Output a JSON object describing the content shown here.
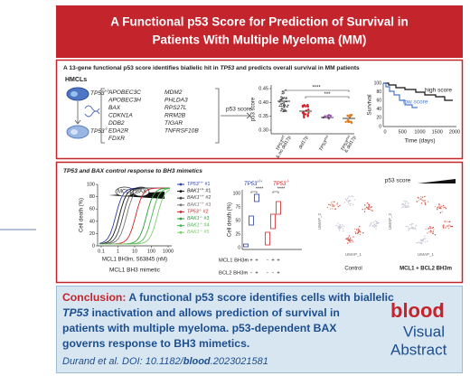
{
  "title": {
    "lines": [
      "A Functional p53 Score for Prediction of Survival in",
      "Patients With Multiple Myeloma (MM)"
    ]
  },
  "panel1": {
    "heading": [
      "A 13-gene functional p53 score identifies biallelic hit in ",
      "TP53",
      " and predicts overall survival in MM patients"
    ],
    "cells": {
      "label": "HMCLs",
      "gene": "TP53",
      "wt": "+/+",
      "ko": "-/-"
    },
    "genes_left": [
      "APOBEC3C",
      "APOBEC3H",
      "BAX",
      "CDKN1A",
      "DDB2",
      "EDA2R",
      "FDXR"
    ],
    "genes_right": [
      "MDM2",
      "PHLDA3",
      "RPS27L",
      "RRM2B",
      "TIGAR",
      "TNFRSF10B"
    ],
    "arrow_label": "p53 score",
    "score_chart": {
      "ylabel": "p53 score",
      "yticks": [
        "0.45",
        "0.40",
        "0.35",
        "0.30"
      ],
      "groups": [
        [
          "TP53",
          "WT",
          ""
        ],
        [
          "del17p",
          "",
          ""
        ],
        [
          "TP53",
          "mut",
          ""
        ],
        [
          "TP53",
          "mut",
          ""
        ]
      ],
      "group_notes": [
        "& no del17p",
        "& del17p"
      ],
      "stars": [
        "****",
        "***"
      ]
    },
    "survival_chart": {
      "ylabel": "Survival",
      "yticks": [
        "100",
        "80",
        "60",
        "40",
        "20",
        "0"
      ],
      "xticks": [
        "0",
        "500",
        "1000",
        "1500",
        "2000"
      ],
      "xlabel": "Time (days)",
      "legend": [
        "high score",
        "low score"
      ]
    }
  },
  "panel2": {
    "heading": [
      "TP53",
      " and ",
      "BAX",
      " control response to BH3 mimetics"
    ],
    "dose_chart": {
      "ylabel": "Cell death (%)",
      "yticks": [
        "100",
        "80",
        "60",
        "40",
        "20",
        "0"
      ],
      "xticks": [
        "0.1",
        "1",
        "10",
        "100",
        "1000"
      ],
      "xlabel": "MCL1 BH3m, S63845 (nM)",
      "caption": "MCL1 BH3 mimetic",
      "proteins": [
        "MCL1",
        "BAX"
      ],
      "legend": [
        {
          "gene": "TP53",
          "sup": "+/+",
          "num": " #1",
          "color": "#2b3fa8"
        },
        {
          "gene": "BAK1",
          "sup": "+/+",
          "num": " #1",
          "color": "#111111"
        },
        {
          "gene": "BAK1",
          "sup": "+/+",
          "num": " #2",
          "color": "#444444"
        },
        {
          "gene": "BAK1",
          "sup": "+/+",
          "num": " #3",
          "color": "#777777"
        },
        {
          "gene": "TP53",
          "sup": "-/-",
          "num": " #2",
          "color": "#d0262a"
        },
        {
          "gene": "BAK1",
          "sup": "-/-",
          "num": " #3",
          "color": "#2e9a3a"
        },
        {
          "gene": "BAK1",
          "sup": "-/-",
          "num": " #4",
          "color": "#4cb84f"
        },
        {
          "gene": "BAK1",
          "sup": "-/-",
          "num": " #5",
          "color": "#7dce6f"
        }
      ]
    },
    "box_chart": {
      "ylabel": "Cell death (%)",
      "yticks": [
        "100",
        "75",
        "50",
        "25",
        "0"
      ],
      "legend": [
        {
          "gene": "TP53",
          "sup": "+/+"
        },
        {
          "gene": "TP53",
          "sup": "-/-"
        }
      ],
      "stars": [
        "****",
        "****"
      ],
      "rows": [
        {
          "label": "MCL1 BH3m",
          "signs": [
            "-",
            "+",
            "+",
            "-",
            "+",
            "+"
          ]
        },
        {
          "label": "BCL2 BH3m",
          "signs": [
            "-",
            "-",
            "+",
            "-",
            "-",
            "+"
          ]
        }
      ]
    },
    "umap": {
      "score_label": "p53 score",
      "x_label": "UMAP_1",
      "y_label": "UMAP_2",
      "captions": [
        "Control",
        "MCL1 + BCL2 BH3m"
      ]
    }
  },
  "conclusion": {
    "label": "Conclusion:",
    "lines": [
      [
        " A functional p53 score identifies cells with biallelic"
      ],
      [
        "TP53",
        " inactivation and allows prediction of survival in"
      ],
      [
        "patients with multiple myeloma. p53-dependent BAX"
      ],
      [
        "governs response to BH3 mimetics."
      ]
    ],
    "citation": [
      "Durand et al. DOI: 10.1182/",
      "blood",
      ".2023021581"
    ],
    "logo": [
      "blood",
      "Visual",
      "Abstract"
    ]
  }
}
